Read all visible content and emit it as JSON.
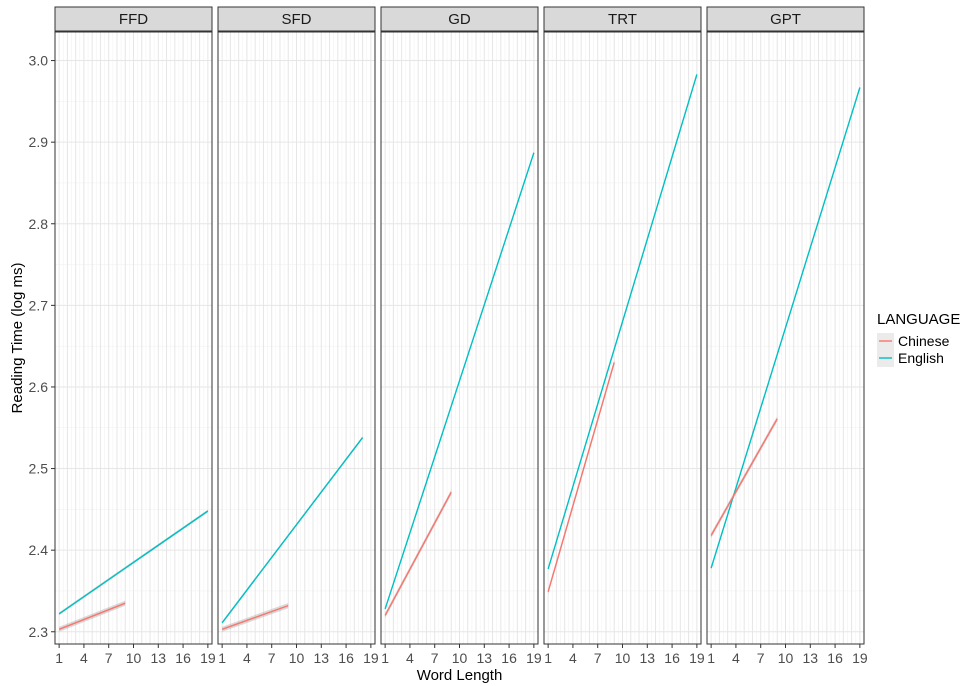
{
  "chart_data": {
    "type": "line",
    "xlabel": "Word Length",
    "ylabel": "Reading Time (log ms)",
    "ylim": [
      2.285,
      3.035
    ],
    "xlim": [
      0.5,
      19.5
    ],
    "yticks": [
      "2.3",
      "2.4",
      "2.5",
      "2.6",
      "2.7",
      "2.8",
      "2.9",
      "3.0"
    ],
    "ytick_values": [
      2.3,
      2.4,
      2.5,
      2.6,
      2.7,
      2.8,
      2.9,
      3.0
    ],
    "xticks": [
      "1",
      "4",
      "7",
      "10",
      "13",
      "16",
      "19"
    ],
    "xtick_values": [
      1,
      4,
      7,
      10,
      13,
      16,
      19
    ],
    "grid": true,
    "legend": {
      "title": "LANGUAGE",
      "position": "right",
      "entries": [
        {
          "name": "Chinese",
          "color": "#F8766D"
        },
        {
          "name": "English",
          "color": "#00BFC4"
        }
      ]
    },
    "panels": [
      {
        "title": "FFD",
        "series": [
          {
            "name": "English",
            "x": [
              1,
              19
            ],
            "y": [
              2.322,
              2.448
            ]
          },
          {
            "name": "Chinese",
            "x": [
              1,
              9
            ],
            "y": [
              2.303,
              2.335
            ]
          }
        ]
      },
      {
        "title": "SFD",
        "series": [
          {
            "name": "English",
            "x": [
              1,
              18
            ],
            "y": [
              2.311,
              2.538
            ]
          },
          {
            "name": "Chinese",
            "x": [
              1,
              9
            ],
            "y": [
              2.303,
              2.332
            ]
          }
        ]
      },
      {
        "title": "GD",
        "series": [
          {
            "name": "English",
            "x": [
              1,
              19
            ],
            "y": [
              2.328,
              2.887
            ]
          },
          {
            "name": "Chinese",
            "x": [
              1,
              9
            ],
            "y": [
              2.32,
              2.471
            ]
          }
        ]
      },
      {
        "title": "TRT",
        "series": [
          {
            "name": "English",
            "x": [
              1,
              19
            ],
            "y": [
              2.377,
              2.983
            ]
          },
          {
            "name": "Chinese",
            "x": [
              1,
              9
            ],
            "y": [
              2.349,
              2.63
            ]
          }
        ]
      },
      {
        "title": "GPT",
        "series": [
          {
            "name": "English",
            "x": [
              1,
              19
            ],
            "y": [
              2.378,
              2.967
            ]
          },
          {
            "name": "Chinese",
            "x": [
              1,
              9
            ],
            "y": [
              2.418,
              2.561
            ]
          }
        ]
      }
    ]
  }
}
